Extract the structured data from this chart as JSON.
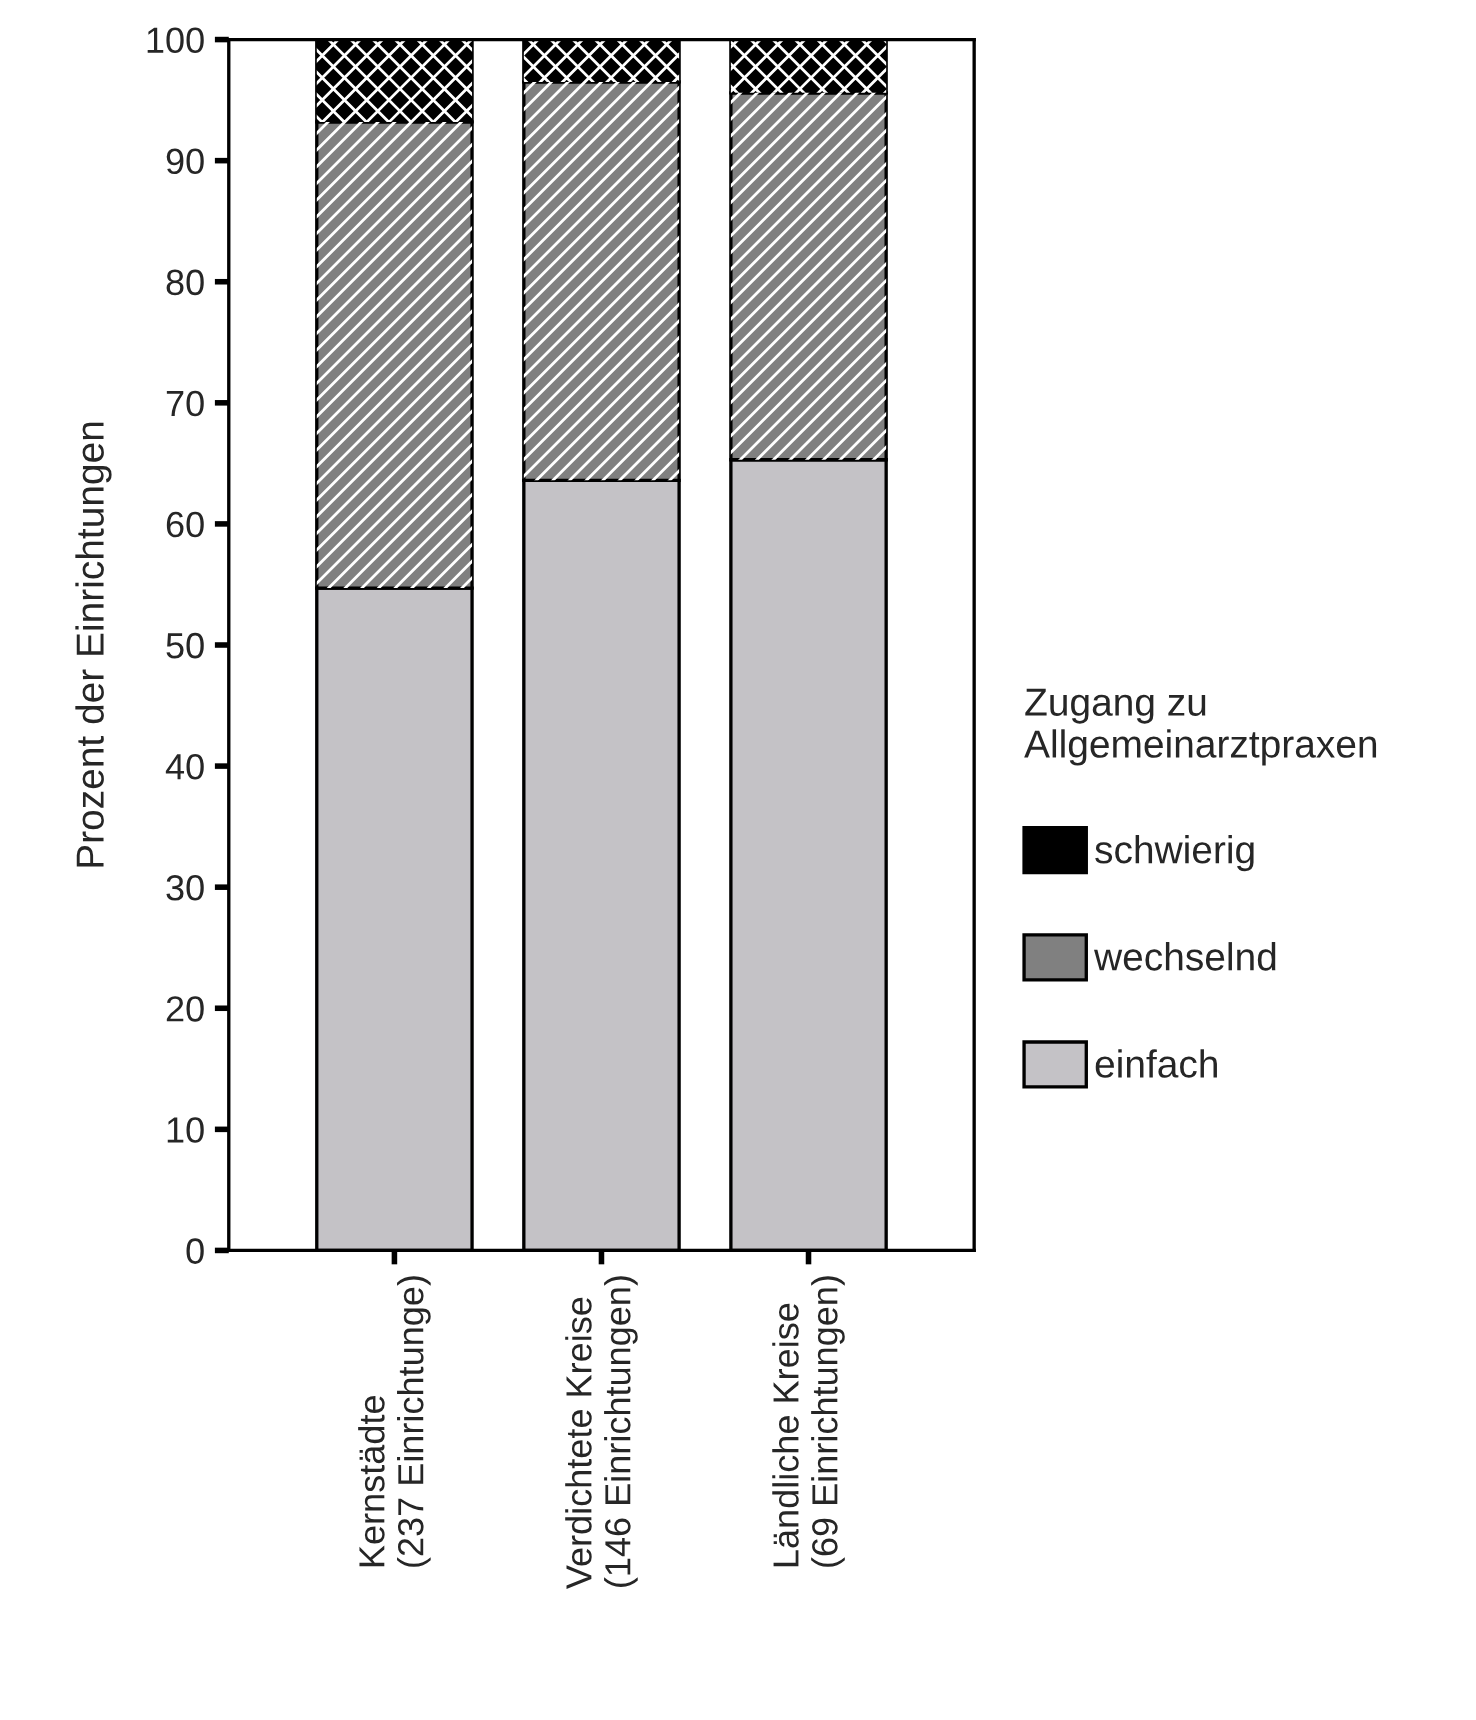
{
  "chart_data": {
    "type": "bar",
    "stacked": true,
    "ylabel": "Prozent der Einrichtungen",
    "legend_title": "Zugang zu\nAllgemeinarztpraxen",
    "legend": "right",
    "categories": [
      "Kernstädte\n(237 Einrichtunge)",
      "Verdichtete Kreise\n(146 Einrichtungen)",
      "Ländliche Kreise\n(69 Einrichtungen)"
    ],
    "series": [
      {
        "name": "einfach",
        "color": "#c4c2c6",
        "values": [
          54.7,
          63.6,
          65.3
        ]
      },
      {
        "name": "wechselnd",
        "color": "#808080",
        "values": [
          38.5,
          32.9,
          30.3
        ]
      },
      {
        "name": "schwierig",
        "color": "#000000",
        "values": [
          6.8,
          3.5,
          4.4
        ]
      }
    ],
    "ylim": [
      0,
      100
    ],
    "yticks": [
      0,
      10,
      20,
      30,
      40,
      50,
      60,
      70,
      80,
      90,
      100
    ],
    "grid": false
  }
}
